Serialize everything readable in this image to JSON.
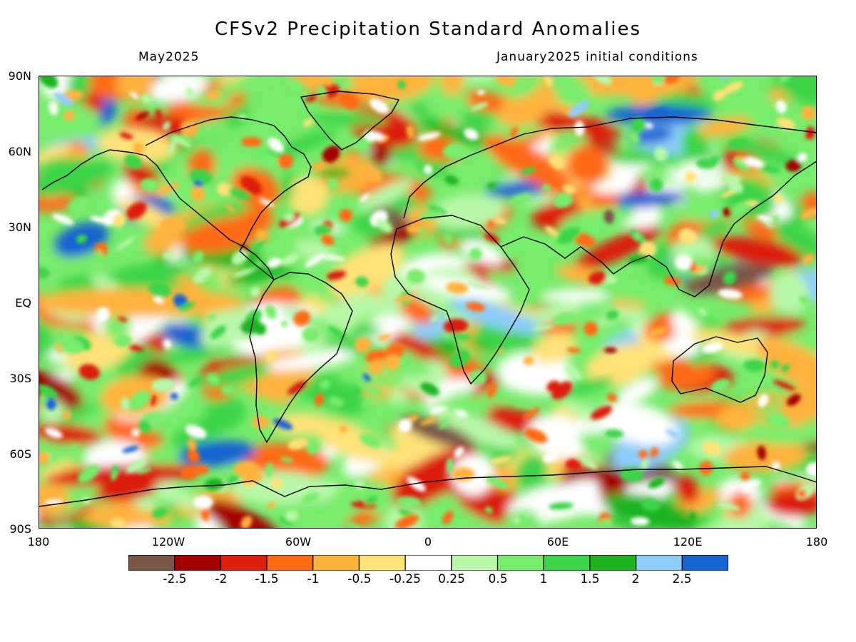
{
  "title": "CFSv2 Precipitation Standard Anomalies",
  "subtitle_left": "May2025",
  "subtitle_right": "January2025 initial conditions",
  "y_axis_labels": [
    "90N",
    "60N",
    "30N",
    "EQ",
    "30S",
    "60S",
    "90S"
  ],
  "x_axis_labels": [
    "180",
    "120W",
    "60W",
    "0",
    "60E",
    "120E",
    "180"
  ],
  "colorbar": {
    "colors": [
      "#7a5548",
      "#a40000",
      "#dc1e0b",
      "#ff6a12",
      "#ffb23c",
      "#ffe278",
      "#ffffff",
      "#b8f8a8",
      "#78ec6c",
      "#3cd448",
      "#1eb420",
      "#8ccdfa",
      "#1464d2"
    ],
    "labels": [
      "-2.5",
      "-2",
      "-1.5",
      "-1",
      "-0.5",
      "-0.25",
      "0.25",
      "0.5",
      "1",
      "1.5",
      "2",
      "2.5"
    ]
  }
}
